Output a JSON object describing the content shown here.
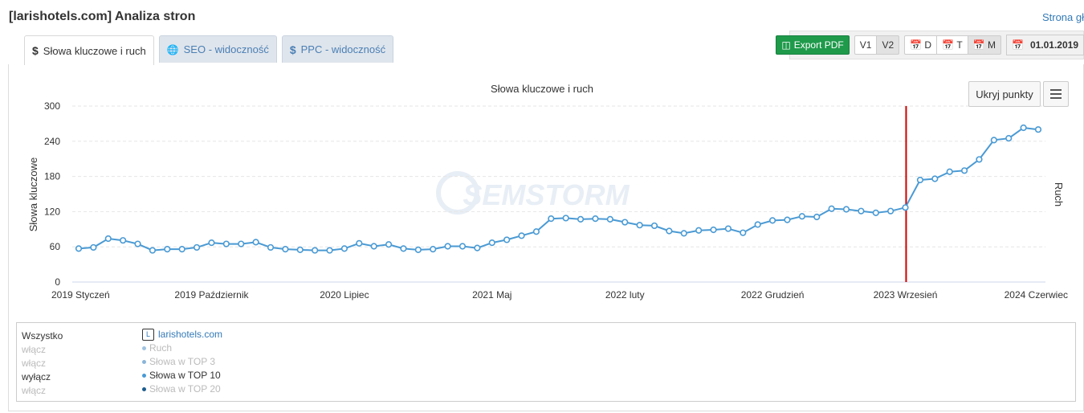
{
  "page_title": "[larishotels.com] Analiza stron",
  "top_link": "Strona gł",
  "tabs": [
    {
      "icon": "$",
      "label": "Słowa kluczowe i ruch",
      "active": true
    },
    {
      "icon": "🌐",
      "label": "SEO - widoczność",
      "active": false
    },
    {
      "icon": "$",
      "label": "PPC - widoczność",
      "active": false
    }
  ],
  "toolbar": {
    "export_label": "Export PDF",
    "v1": "V1",
    "v2": "V2",
    "d": "D",
    "t": "T",
    "m": "M",
    "date": "01.01.2019"
  },
  "chart_buttons": {
    "hide_points": "Ukryj punkty"
  },
  "watermark": "SEMSTORM",
  "chart_data": {
    "type": "line",
    "title": "Słowa kluczowe i ruch",
    "ylabel": "Słowa kluczowe",
    "y2label": "Ruch",
    "ylim": [
      0,
      300
    ],
    "yticks": [
      0,
      60,
      120,
      180,
      240,
      300
    ],
    "xtick_labels": [
      {
        "label": "2019 Styczeń",
        "index": 0
      },
      {
        "label": "2019 Październik",
        "index": 9
      },
      {
        "label": "2020 Lipiec",
        "index": 18
      },
      {
        "label": "2021 Maj",
        "index": 28
      },
      {
        "label": "2022 luty",
        "index": 37
      },
      {
        "label": "2022 Grudzień",
        "index": 47
      },
      {
        "label": "2023 Wrzesień",
        "index": 56
      },
      {
        "label": "2024 Czerwiec",
        "index": 65
      }
    ],
    "marker_line_index": 56,
    "marker_line_color": "#d00000",
    "series": [
      {
        "name": "Słowa w TOP 10",
        "color": "#4a9ad4",
        "values": [
          57,
          59,
          74,
          71,
          65,
          54,
          56,
          56,
          59,
          67,
          65,
          65,
          68,
          59,
          56,
          55,
          54,
          54,
          57,
          66,
          61,
          64,
          57,
          55,
          56,
          61,
          61,
          58,
          67,
          72,
          79,
          86,
          108,
          109,
          107,
          108,
          107,
          102,
          97,
          96,
          87,
          83,
          88,
          89,
          91,
          84,
          98,
          105,
          106,
          112,
          111,
          125,
          124,
          121,
          118,
          121,
          127,
          174,
          176,
          188,
          190,
          209,
          242,
          245,
          263,
          260
        ]
      }
    ]
  },
  "legend": {
    "all": "Wszystko",
    "site": "larishotels.com",
    "rows": [
      {
        "toggle": "włącz",
        "name": "Ruch",
        "active": false,
        "color": "#9fc3e0"
      },
      {
        "toggle": "włącz",
        "name": "Słowa w TOP 3",
        "active": false,
        "color": "#8ab5d8"
      },
      {
        "toggle": "wyłącz",
        "name": "Słowa w TOP 10",
        "active": true,
        "color": "#4a9ad4"
      },
      {
        "toggle": "włącz",
        "name": "Słowa w TOP 20",
        "active": false,
        "color": "#1c5c8c"
      }
    ]
  }
}
